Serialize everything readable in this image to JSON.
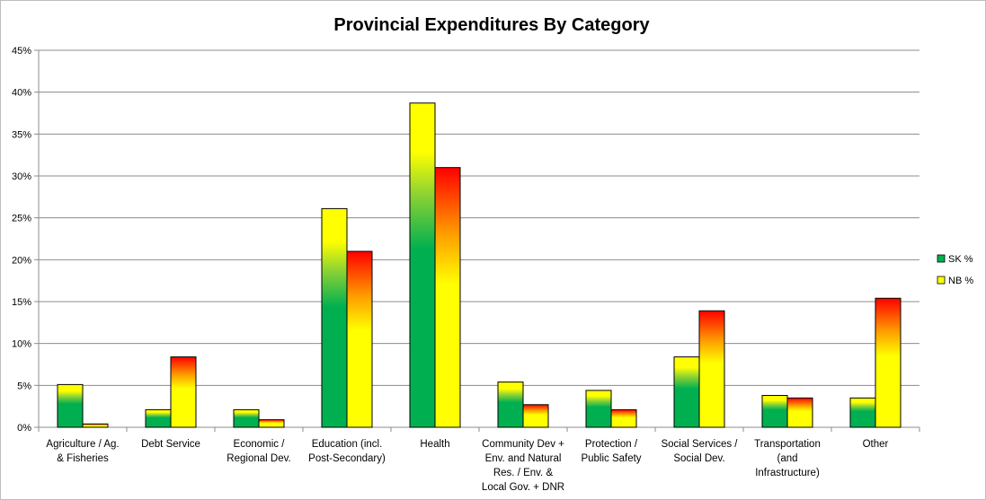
{
  "chart_data": {
    "type": "bar",
    "title": "Provincial Expenditures By Category",
    "xlabel": "",
    "ylabel": "",
    "ylim": [
      0,
      45
    ],
    "yticks": [
      0,
      5,
      10,
      15,
      20,
      25,
      30,
      35,
      40,
      45
    ],
    "ytick_labels": [
      "0%",
      "5%",
      "10%",
      "15%",
      "20%",
      "25%",
      "30%",
      "35%",
      "40%",
      "45%"
    ],
    "grid": true,
    "legend_position": "right",
    "categories": [
      "Agriculture / Ag. & Fisheries",
      "Debt Service",
      "Economic / Regional Dev.",
      "Education (incl. Post-Secondary)",
      "Health",
      "Community Dev + Env. and Natural Res. / Env. & Local Gov. + DNR",
      "Protection / Public Safety",
      "Social Services / Social Dev.",
      "Transportation (and Infrastructure)",
      "Other"
    ],
    "category_label_lines": [
      [
        "Agriculture / Ag.",
        "& Fisheries"
      ],
      [
        "Debt Service"
      ],
      [
        "Economic /",
        "Regional Dev."
      ],
      [
        "Education (incl.",
        "Post-Secondary)"
      ],
      [
        "Health"
      ],
      [
        "Community Dev +",
        "Env. and Natural",
        "Res. / Env. &",
        "Local Gov. + DNR"
      ],
      [
        "Protection /",
        "Public Safety"
      ],
      [
        "Social Services /",
        "Social Dev."
      ],
      [
        "Transportation",
        "(and",
        "Infrastructure)"
      ],
      [
        "Other"
      ]
    ],
    "series": [
      {
        "name": "SK %",
        "values": [
          5.1,
          2.1,
          2.1,
          26.1,
          38.7,
          5.4,
          4.4,
          8.4,
          3.8,
          3.5
        ],
        "color_bottom": "#00b050",
        "color_top": "#ffff00"
      },
      {
        "name": "NB %",
        "values": [
          0.4,
          8.4,
          0.9,
          21.0,
          31.0,
          2.7,
          2.1,
          13.9,
          3.5,
          15.4
        ],
        "color_bottom": "#ffff00",
        "color_top": "#ff0000"
      }
    ]
  }
}
